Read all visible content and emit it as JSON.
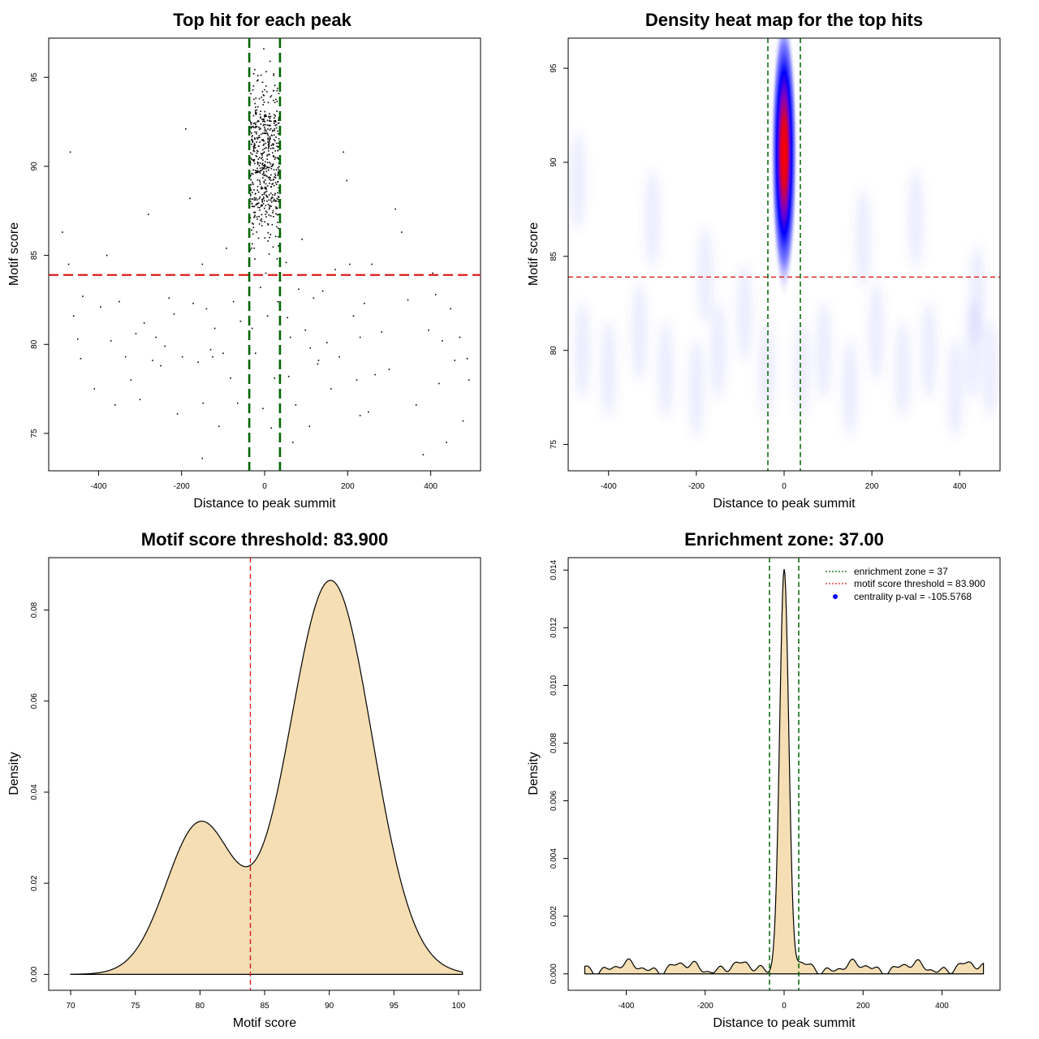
{
  "chart_data": [
    {
      "type": "scatter",
      "title": "Top hit for each peak",
      "xlabel": "Distance to peak summit",
      "ylabel": "Motif score",
      "xlim": [
        -520,
        520
      ],
      "ylim": [
        72.9,
        97.2
      ],
      "xticks": [
        -400,
        -200,
        0,
        200,
        400
      ],
      "yticks": [
        75,
        80,
        85,
        90,
        95
      ],
      "threshold": 83.9,
      "zone": 37,
      "points": [
        [
          -487,
          86.3
        ],
        [
          -472,
          84.5
        ],
        [
          -468,
          90.8
        ],
        [
          -460,
          81.6
        ],
        [
          -450,
          80.3
        ],
        [
          -443,
          79.2
        ],
        [
          -438,
          82.7
        ],
        [
          -410,
          77.5
        ],
        [
          -395,
          82.1
        ],
        [
          -380,
          85.0
        ],
        [
          -370,
          80.2
        ],
        [
          -360,
          76.6
        ],
        [
          -350,
          82.4
        ],
        [
          -335,
          79.3
        ],
        [
          -322,
          78.0
        ],
        [
          -310,
          80.6
        ],
        [
          -300,
          76.9
        ],
        [
          -290,
          81.2
        ],
        [
          -280,
          87.3
        ],
        [
          -270,
          79.1
        ],
        [
          -262,
          80.4
        ],
        [
          -250,
          78.8
        ],
        [
          -240,
          79.9
        ],
        [
          -230,
          82.6
        ],
        [
          -218,
          81.7
        ],
        [
          -210,
          76.1
        ],
        [
          -198,
          79.3
        ],
        [
          -190,
          92.1
        ],
        [
          -180,
          88.2
        ],
        [
          -172,
          82.3
        ],
        [
          -160,
          79.0
        ],
        [
          -150,
          84.5
        ],
        [
          -140,
          82.0
        ],
        [
          -130,
          79.7
        ],
        [
          -120,
          80.9
        ],
        [
          -110,
          75.4
        ],
        [
          -100,
          79.5
        ],
        [
          -92,
          85.4
        ],
        [
          -82,
          78.1
        ],
        [
          -75,
          82.4
        ],
        [
          -65,
          76.7
        ],
        [
          -58,
          81.3
        ],
        [
          -150,
          73.6
        ],
        [
          -148,
          76.7
        ],
        [
          -125,
          79.3
        ],
        [
          52,
          84.6
        ],
        [
          55,
          81.5
        ],
        [
          58,
          78.2
        ],
        [
          62,
          80.4
        ],
        [
          68,
          74.5
        ],
        [
          75,
          76.6
        ],
        [
          82,
          83.1
        ],
        [
          90,
          85.9
        ],
        [
          98,
          80.8
        ],
        [
          108,
          75.4
        ],
        [
          118,
          82.6
        ],
        [
          128,
          78.9
        ],
        [
          140,
          83.0
        ],
        [
          150,
          80.1
        ],
        [
          160,
          77.5
        ],
        [
          170,
          84.2
        ],
        [
          180,
          79.3
        ],
        [
          190,
          90.8
        ],
        [
          198,
          89.2
        ],
        [
          205,
          84.5
        ],
        [
          214,
          81.6
        ],
        [
          222,
          78.0
        ],
        [
          230,
          80.4
        ],
        [
          240,
          82.3
        ],
        [
          250,
          76.2
        ],
        [
          258,
          84.5
        ],
        [
          266,
          78.3
        ],
        [
          282,
          80.7
        ],
        [
          300,
          78.6
        ],
        [
          315,
          87.6
        ],
        [
          330,
          86.3
        ],
        [
          345,
          82.5
        ],
        [
          365,
          76.6
        ],
        [
          382,
          73.8
        ],
        [
          395,
          80.8
        ],
        [
          405,
          84.0
        ],
        [
          412,
          82.8
        ],
        [
          420,
          77.8
        ],
        [
          428,
          80.2
        ],
        [
          438,
          74.5
        ],
        [
          448,
          82.0
        ],
        [
          458,
          79.1
        ],
        [
          470,
          80.4
        ],
        [
          478,
          75.7
        ],
        [
          488,
          79.2
        ],
        [
          492,
          78.0
        ],
        [
          230,
          76.0
        ],
        [
          110,
          79.8
        ],
        [
          130,
          79.1
        ],
        [
          -5,
          94.2
        ],
        [
          8,
          91.5
        ],
        [
          -12,
          89.7
        ],
        [
          15,
          88.1
        ],
        [
          2,
          87.3
        ],
        [
          -20,
          93.0
        ],
        [
          22,
          95.1
        ],
        [
          -28,
          86.2
        ],
        [
          30,
          84.8
        ],
        [
          -2,
          96.6
        ],
        [
          10,
          92.8
        ],
        [
          -15,
          90.4
        ],
        [
          18,
          89.0
        ],
        [
          5,
          88.6
        ],
        [
          -8,
          87.8
        ],
        [
          12,
          86.0
        ],
        [
          -25,
          85.4
        ],
        [
          26,
          92.3
        ],
        [
          0,
          91.0
        ],
        [
          -18,
          94.8
        ],
        [
          20,
          90.1
        ],
        [
          -10,
          83.2
        ],
        [
          7,
          81.6
        ],
        [
          -22,
          79.5
        ],
        [
          24,
          78.1
        ],
        [
          -4,
          76.4
        ],
        [
          16,
          75.3
        ],
        [
          -30,
          80.9
        ],
        [
          32,
          82.4
        ],
        [
          3,
          84.0
        ],
        [
          -1,
          93.6
        ],
        [
          13,
          95.9
        ]
      ]
    },
    {
      "type": "heatmap",
      "title": "Density heat map for the top hits",
      "xlabel": "Distance to peak summit",
      "ylabel": "Motif score",
      "xlim": [
        -492,
        492
      ],
      "ylim": [
        73.6,
        96.6
      ],
      "xticks": [
        -400,
        -200,
        0,
        200,
        400
      ],
      "yticks": [
        75,
        80,
        85,
        90,
        95
      ],
      "threshold": 83.9,
      "zone": 37,
      "hotspot": {
        "x": 0,
        "y": 90.5,
        "sx": 12,
        "sy": 2.6
      },
      "blobs": [
        [
          -460,
          80
        ],
        [
          -400,
          79
        ],
        [
          -330,
          81
        ],
        [
          -270,
          79
        ],
        [
          -200,
          78
        ],
        [
          -150,
          80
        ],
        [
          -90,
          82
        ],
        [
          -40,
          79
        ],
        [
          40,
          79
        ],
        [
          90,
          80
        ],
        [
          150,
          78
        ],
        [
          210,
          81
        ],
        [
          270,
          79
        ],
        [
          330,
          80
        ],
        [
          390,
          78
        ],
        [
          430,
          80
        ],
        [
          470,
          79
        ],
        [
          -470,
          89
        ],
        [
          -300,
          87
        ],
        [
          -180,
          84
        ],
        [
          180,
          86
        ],
        [
          300,
          87
        ],
        [
          440,
          83
        ]
      ]
    },
    {
      "type": "area",
      "title": "Motif score threshold: 83.900",
      "xlabel": "Motif score",
      "ylabel": "Density",
      "xlim": [
        68.3,
        101.7
      ],
      "ylim": [
        -0.0035,
        0.0915
      ],
      "xticks": [
        70,
        75,
        80,
        85,
        90,
        95,
        100
      ],
      "yticks": [
        0.0,
        0.02,
        0.04,
        0.06,
        0.08
      ],
      "ytick_labels": [
        "0.00",
        "0.02",
        "0.04",
        "0.06",
        "0.08"
      ],
      "threshold": 83.9,
      "components": [
        {
          "w": 0.033,
          "mu": 80.0,
          "sigma": 2.6
        },
        {
          "w": 0.0865,
          "mu": 90.1,
          "sigma": 3.2
        }
      ],
      "x_range": [
        70.0,
        100.3
      ]
    },
    {
      "type": "area",
      "title": "Enrichment zone: 37.00",
      "xlabel": "Distance to peak summit",
      "ylabel": "Density",
      "xlim": [
        -547,
        547
      ],
      "ylim": [
        -0.00057,
        0.01443
      ],
      "xticks": [
        -400,
        -200,
        0,
        200,
        400
      ],
      "yticks": [
        0.0,
        0.002,
        0.004,
        0.006,
        0.008,
        0.01,
        0.012,
        0.014
      ],
      "ytick_labels": [
        "0.000",
        "0.002",
        "0.004",
        "0.006",
        "0.008",
        "0.010",
        "0.012",
        "0.014"
      ],
      "zone": 37,
      "peak": {
        "mu": 0,
        "sigma": 11.5,
        "height": 0.0137
      },
      "x_range": [
        -505,
        505
      ],
      "legend": [
        "enrichment zone = 37",
        "motif score threshold = 83.900",
        "centrality p-val = -105.5768"
      ]
    }
  ],
  "colors": {
    "threshold_red": "#dd1c1c",
    "zone_green": "#006400",
    "fill_wheat": "#f5deb3",
    "heat_blue": "#0000ff",
    "heat_red": "#ff0000",
    "legend_dot": "#0000ff"
  }
}
